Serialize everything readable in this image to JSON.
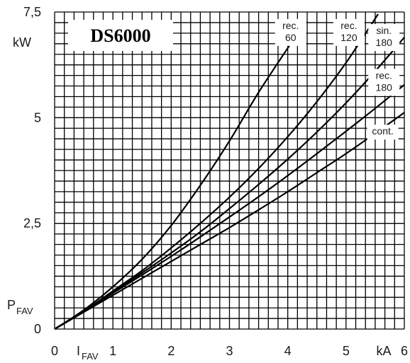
{
  "chart_data": {
    "type": "line",
    "title": "DS6000",
    "xlabel": "kA",
    "ylabel": "kW",
    "x_axis_symbol_main": "I",
    "x_axis_symbol_sub": "FAV",
    "y_axis_symbol_main": "P",
    "y_axis_symbol_sub": "FAV",
    "xlim": [
      0,
      6
    ],
    "ylim": [
      0,
      7.5
    ],
    "x_ticks": [
      "0",
      "1",
      "2",
      "3",
      "4",
      "5",
      "6"
    ],
    "y_ticks": [
      "0",
      "2,5",
      "5",
      "7,5"
    ],
    "grid": true,
    "series": [
      {
        "name": "rec. 60",
        "label_lines": [
          "rec.",
          "60"
        ],
        "x": [
          0,
          0.5,
          1,
          1.5,
          2,
          2.5,
          3,
          3.5,
          4.05
        ],
        "y": [
          0,
          0.45,
          1.0,
          1.65,
          2.45,
          3.4,
          4.45,
          5.6,
          6.75
        ]
      },
      {
        "name": "rec. 120",
        "label_lines": [
          "rec.",
          "120"
        ],
        "x": [
          0,
          0.5,
          1,
          1.5,
          2,
          2.5,
          3,
          3.5,
          4,
          4.5,
          5,
          5.55
        ],
        "y": [
          0,
          0.42,
          0.9,
          1.38,
          1.92,
          2.5,
          3.12,
          3.8,
          4.55,
          5.38,
          6.3,
          7.45
        ]
      },
      {
        "name": "sin. 180",
        "label_lines": [
          "sin.",
          "180"
        ],
        "x": [
          0,
          0.5,
          1,
          1.5,
          2,
          2.5,
          3,
          3.5,
          4,
          4.5,
          5,
          5.5,
          6
        ],
        "y": [
          0,
          0.42,
          0.88,
          1.33,
          1.8,
          2.3,
          2.85,
          3.42,
          4.02,
          4.66,
          5.35,
          6.1,
          6.9
        ]
      },
      {
        "name": "rec. 180",
        "label_lines": [
          "rec.",
          "180"
        ],
        "x": [
          0,
          0.5,
          1,
          1.5,
          2,
          2.5,
          3,
          3.5,
          4,
          4.5,
          5,
          5.5,
          6
        ],
        "y": [
          0,
          0.41,
          0.85,
          1.28,
          1.72,
          2.18,
          2.65,
          3.13,
          3.63,
          4.15,
          4.68,
          5.22,
          5.78
        ]
      },
      {
        "name": "cont.",
        "label_lines": [
          "cont."
        ],
        "x": [
          0,
          0.5,
          1,
          1.5,
          2,
          2.5,
          3,
          3.5,
          4,
          4.5,
          5,
          5.5,
          6
        ],
        "y": [
          0,
          0.4,
          0.8,
          1.2,
          1.6,
          2.0,
          2.4,
          2.82,
          3.25,
          3.7,
          4.15,
          4.63,
          5.12
        ]
      }
    ]
  }
}
